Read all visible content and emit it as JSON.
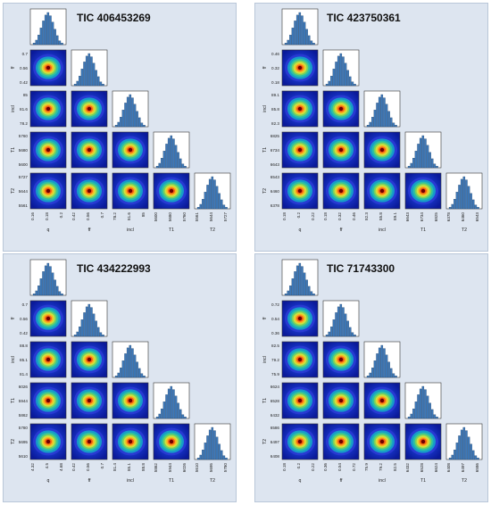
{
  "chart_data": [
    {
      "type": "corner",
      "title": "TIC 406453269",
      "parameters": [
        "q",
        "ff",
        "incl",
        "T1",
        "T2"
      ],
      "ticks": {
        "q": [
          "0.16",
          "0.18",
          "0.2"
        ],
        "ff": [
          "0.42",
          "0.56",
          "0.7"
        ],
        "incl": [
          "78.2",
          "81.6",
          "85"
        ],
        "T1": [
          "5600",
          "5680",
          "5760"
        ],
        "T2": [
          "5561",
          "5644",
          "5727"
        ]
      }
    },
    {
      "type": "corner",
      "title": "TIC 423750361",
      "parameters": [
        "q",
        "ff",
        "incl",
        "T1",
        "T2"
      ],
      "ticks": {
        "q": [
          "0.18",
          "0.2",
          "0.22"
        ],
        "ff": [
          "0.18",
          "0.32",
          "0.46"
        ],
        "incl": [
          "82.3",
          "85.8",
          "89.1"
        ],
        "T1": [
          "6643",
          "6734",
          "6825"
        ],
        "T2": [
          "6378",
          "6460",
          "6543"
        ]
      }
    },
    {
      "type": "corner",
      "title": "TIC 434222993",
      "parameters": [
        "q",
        "ff",
        "incl",
        "T1",
        "T2"
      ],
      "ticks": {
        "q": [
          "4.32",
          "4.5",
          "4.68"
        ],
        "ff": [
          "0.42",
          "0.56",
          "0.7"
        ],
        "incl": [
          "81.4",
          "85.1",
          "88.8"
        ],
        "T1": [
          "5862",
          "5944",
          "6026"
        ],
        "T2": [
          "5610",
          "5695",
          "5780"
        ]
      }
    },
    {
      "type": "corner",
      "title": "TIC 71743300",
      "parameters": [
        "q",
        "ff",
        "incl",
        "T1",
        "T2"
      ],
      "ticks": {
        "q": [
          "0.18",
          "0.2",
          "0.22"
        ],
        "ff": [
          "0.36",
          "0.54",
          "0.72"
        ],
        "incl": [
          "75.9",
          "79.2",
          "82.5"
        ],
        "T1": [
          "6432",
          "6528",
          "6624"
        ],
        "T2": [
          "6408",
          "6497",
          "6586"
        ]
      }
    }
  ]
}
